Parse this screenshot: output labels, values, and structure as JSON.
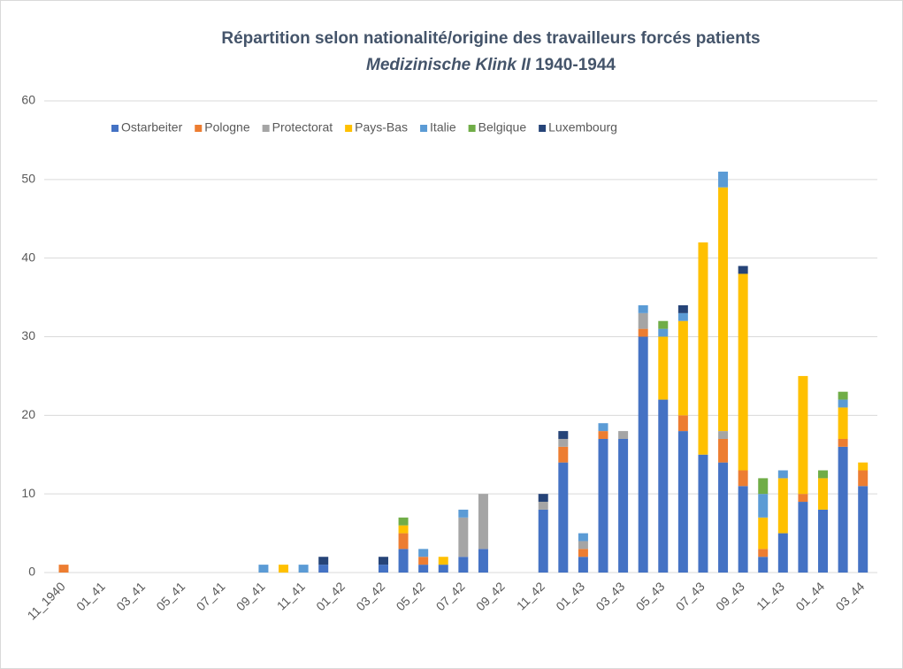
{
  "chart_data": {
    "type": "stacked_bar",
    "title": "Répartition selon nationalité/origine des travailleurs forcés patients",
    "subtitle": {
      "italic": "Medizinische Klink II",
      "text": "1940-1944"
    },
    "categories": [
      "11_1940",
      null,
      "01_41",
      null,
      "03_41",
      null,
      "05_41",
      null,
      "07_41",
      null,
      "09_41",
      null,
      "11_41",
      null,
      "01_42",
      null,
      "03_42",
      null,
      "05_42",
      null,
      "07_42",
      null,
      "09_42",
      null,
      "11_42",
      null,
      "01_43",
      null,
      "03_43",
      null,
      "05_43",
      null,
      "07_43",
      null,
      "09_43",
      null,
      "11_43",
      null,
      "01_44",
      null,
      "03_44"
    ],
    "series": [
      {
        "name": "Ostarbeiter",
        "color": "#4472c4",
        "values": [
          0,
          0,
          0,
          0,
          0,
          0,
          0,
          0,
          0,
          0,
          0,
          0,
          0,
          1,
          0,
          0,
          1,
          3,
          1,
          1,
          2,
          3,
          0,
          0,
          8,
          14,
          2,
          17,
          17,
          30,
          22,
          18,
          15,
          14,
          11,
          2,
          5,
          9,
          8,
          16,
          11
        ]
      },
      {
        "name": "Pologne",
        "color": "#ed7d31",
        "values": [
          1,
          0,
          0,
          0,
          0,
          0,
          0,
          0,
          0,
          0,
          0,
          0,
          0,
          0,
          0,
          0,
          0,
          2,
          1,
          0,
          0,
          0,
          0,
          0,
          0,
          2,
          1,
          1,
          0,
          1,
          0,
          2,
          0,
          3,
          2,
          1,
          0,
          1,
          0,
          1,
          2
        ]
      },
      {
        "name": "Protectorat",
        "color": "#a5a5a5",
        "values": [
          0,
          0,
          0,
          0,
          0,
          0,
          0,
          0,
          0,
          0,
          0,
          0,
          0,
          0,
          0,
          0,
          0,
          0,
          0,
          0,
          5,
          7,
          0,
          0,
          1,
          1,
          1,
          0,
          1,
          2,
          0,
          0,
          0,
          1,
          0,
          0,
          0,
          0,
          0,
          0,
          0
        ]
      },
      {
        "name": "Pays-Bas",
        "color": "#ffc000",
        "values": [
          0,
          0,
          0,
          0,
          0,
          0,
          0,
          0,
          0,
          0,
          0,
          1,
          0,
          0,
          0,
          0,
          0,
          1,
          0,
          1,
          0,
          0,
          0,
          0,
          0,
          0,
          0,
          0,
          0,
          0,
          8,
          12,
          27,
          31,
          25,
          4,
          7,
          15,
          4,
          4,
          1
        ]
      },
      {
        "name": "Italie",
        "color": "#5b9bd5",
        "values": [
          0,
          0,
          0,
          0,
          0,
          0,
          0,
          0,
          0,
          0,
          1,
          0,
          1,
          0,
          0,
          0,
          0,
          0,
          1,
          0,
          1,
          0,
          0,
          0,
          0,
          0,
          1,
          1,
          0,
          1,
          1,
          1,
          0,
          2,
          0,
          3,
          1,
          0,
          0,
          1,
          0
        ]
      },
      {
        "name": "Belgique",
        "color": "#70ad47",
        "values": [
          0,
          0,
          0,
          0,
          0,
          0,
          0,
          0,
          0,
          0,
          0,
          0,
          0,
          0,
          0,
          0,
          0,
          1,
          0,
          0,
          0,
          0,
          0,
          0,
          0,
          0,
          0,
          0,
          0,
          0,
          1,
          0,
          0,
          0,
          0,
          2,
          0,
          0,
          1,
          1,
          0
        ]
      },
      {
        "name": "Luxembourg",
        "color": "#264478",
        "values": [
          0,
          0,
          0,
          0,
          0,
          0,
          0,
          0,
          0,
          0,
          0,
          0,
          0,
          1,
          0,
          0,
          1,
          0,
          0,
          0,
          0,
          0,
          0,
          0,
          1,
          1,
          0,
          0,
          0,
          0,
          0,
          1,
          0,
          0,
          1,
          0,
          0,
          0,
          0,
          0,
          0
        ]
      }
    ],
    "ylim": [
      0,
      60
    ],
    "yticks": [
      0,
      10,
      20,
      30,
      40,
      50,
      60
    ],
    "grid": true,
    "legend": "top"
  }
}
